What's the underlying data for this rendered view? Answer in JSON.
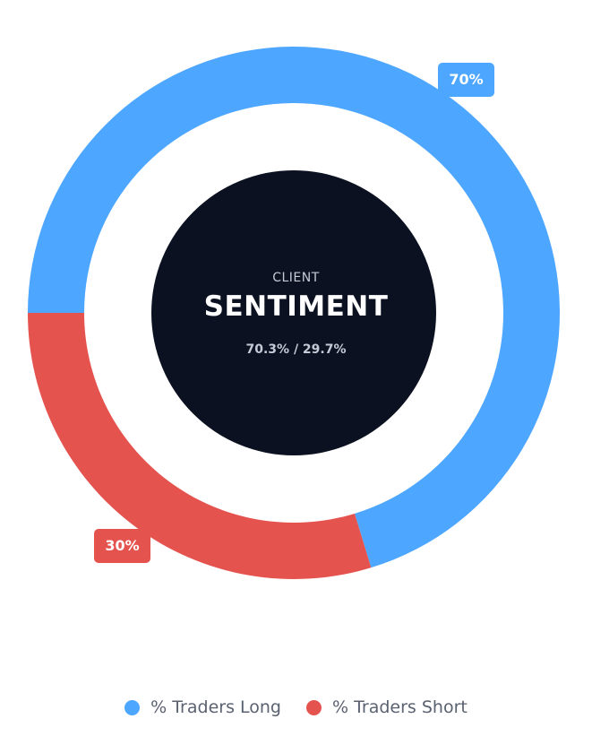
{
  "chart_data": {
    "type": "donut",
    "categories": [
      "% Traders Long",
      "% Traders Short"
    ],
    "values": [
      70.3,
      29.7
    ],
    "data_labels": [
      "70%",
      "30%"
    ],
    "colors": [
      "#4da6ff",
      "#e5534f"
    ],
    "center": {
      "label": "CLIENT",
      "title": "SENTIMENT",
      "subtitle": "70.3% / 29.7%"
    },
    "center_color": "#0b1120",
    "legend_position": "bottom"
  }
}
